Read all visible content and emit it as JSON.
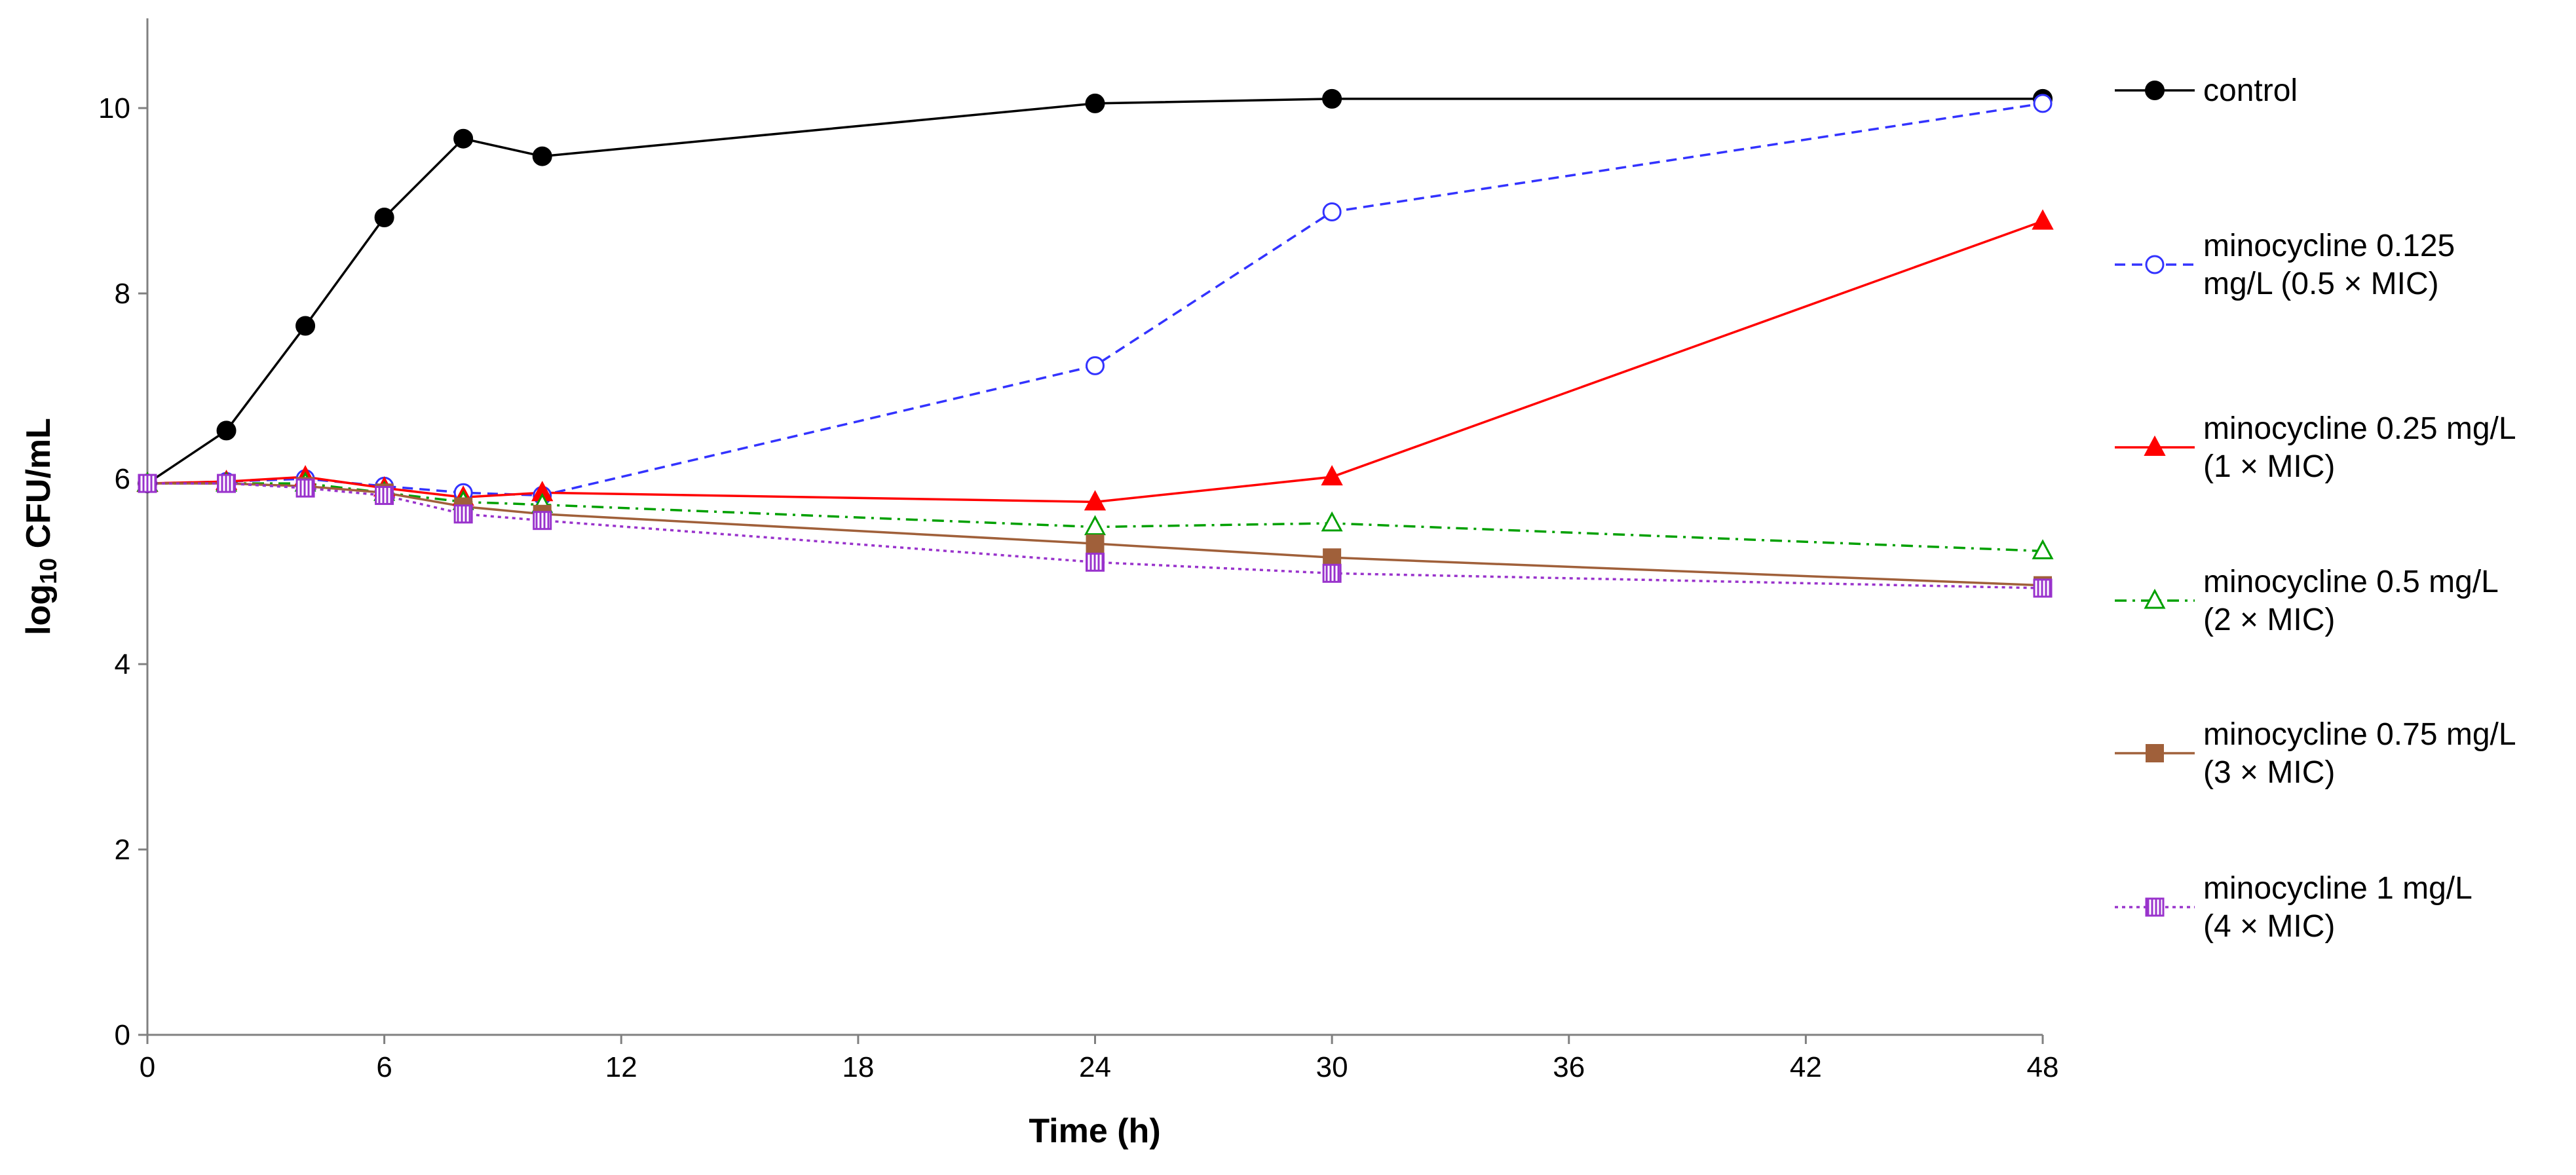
{
  "chart_data": {
    "type": "line",
    "title": "",
    "xlabel": "Time (h)",
    "ylabel_main": "log",
    "ylabel_sub": "10",
    "ylabel_rest": " CFU/mL",
    "xlim": [
      0,
      48
    ],
    "ylim": [
      0,
      10.5
    ],
    "xticks": [
      "0",
      "6",
      "12",
      "18",
      "24",
      "30",
      "36",
      "42",
      "48"
    ],
    "yticks": [
      "0",
      "2",
      "4",
      "6",
      "8",
      "10"
    ],
    "grid": false,
    "legend_position": "right",
    "x": [
      0,
      2,
      4,
      6,
      8,
      10,
      24,
      30,
      48
    ],
    "series": [
      {
        "name_lines": [
          "control"
        ],
        "color": "#000000",
        "dash": "solid",
        "marker": "filled-circle",
        "values": [
          5.95,
          6.52,
          7.65,
          8.82,
          9.67,
          9.48,
          10.05,
          10.1,
          10.1
        ]
      },
      {
        "name_lines": [
          "minocycline 0.125",
          "mg/L (0.5 × MIC)"
        ],
        "color": "#3333ff",
        "dash": "dashed",
        "marker": "open-circle",
        "values": [
          5.95,
          5.97,
          6.0,
          5.92,
          5.85,
          5.82,
          7.22,
          8.88,
          10.05
        ]
      },
      {
        "name_lines": [
          "minocycline 0.25 mg/L",
          "(1 × MIC)"
        ],
        "color": "#ff0000",
        "dash": "solid",
        "marker": "filled-triangle",
        "values": [
          5.95,
          5.97,
          6.02,
          5.9,
          5.8,
          5.85,
          5.75,
          6.02,
          8.78
        ]
      },
      {
        "name_lines": [
          "minocycline 0.5 mg/L",
          "(2 × MIC)"
        ],
        "color": "#00a000",
        "dash": "dashdot",
        "marker": "open-triangle",
        "values": [
          5.95,
          5.95,
          5.95,
          5.85,
          5.75,
          5.72,
          5.48,
          5.52,
          5.22
        ]
      },
      {
        "name_lines": [
          "minocycline 0.75 mg/L",
          "(3 × MIC)"
        ],
        "color": "#a0603a",
        "dash": "solid",
        "marker": "filled-square",
        "values": [
          5.95,
          5.95,
          5.92,
          5.85,
          5.7,
          5.62,
          5.3,
          5.15,
          4.85
        ]
      },
      {
        "name_lines": [
          "minocycline 1 mg/L",
          "(4 × MIC)"
        ],
        "color": "#9933cc",
        "dash": "dotted",
        "marker": "hatched-square",
        "values": [
          5.95,
          5.95,
          5.9,
          5.82,
          5.62,
          5.55,
          5.1,
          4.98,
          4.82
        ]
      }
    ]
  }
}
